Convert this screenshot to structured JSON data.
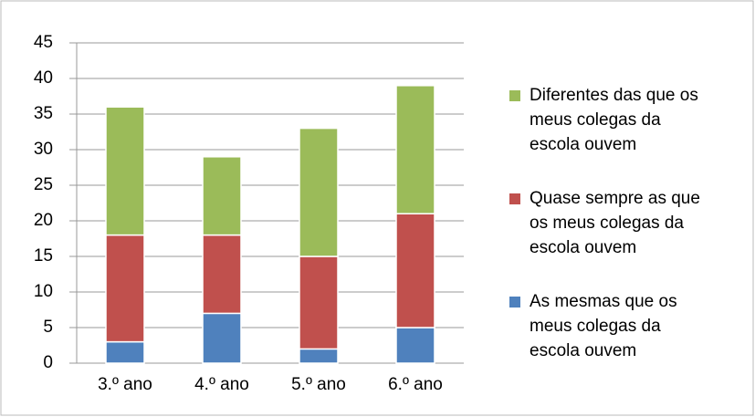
{
  "chart_data": {
    "type": "stacked_bar",
    "categories": [
      "3.º ano",
      "4.º ano",
      "5.º ano",
      "6.º ano"
    ],
    "series": [
      {
        "name": "As mesmas que os meus colegas da escola ouvem",
        "color": "#4f81bd",
        "values": [
          3,
          7,
          2,
          5
        ]
      },
      {
        "name": "Quase sempre as que os meus colegas da escola ouvem",
        "color": "#c0504d",
        "values": [
          15,
          11,
          13,
          16
        ]
      },
      {
        "name": "Diferentes das que os meus colegas da escola ouvem",
        "color": "#9bbb59",
        "values": [
          18,
          11,
          18,
          18
        ]
      }
    ],
    "ylim": [
      0,
      45
    ],
    "yticks": [
      0,
      5,
      10,
      15,
      20,
      25,
      30,
      35,
      40,
      45
    ],
    "grid": true,
    "legend": "right"
  }
}
